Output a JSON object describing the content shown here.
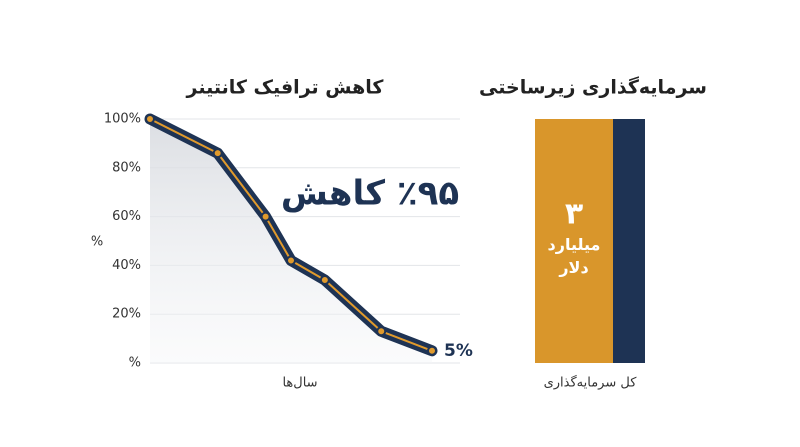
{
  "chart_data": [
    {
      "type": "line",
      "title": "کاهش ترافیک کانتینر",
      "ylabel": "%",
      "xlabel": "سال‌ها",
      "x": [
        0,
        24,
        41,
        50,
        62,
        82,
        100
      ],
      "xlim": [
        0,
        100
      ],
      "values": [
        100,
        86,
        60,
        42,
        34,
        13,
        5
      ],
      "value_labels": [
        null,
        null,
        null,
        null,
        null,
        null,
        "5%"
      ],
      "ylim": [
        0,
        100
      ],
      "yticks": [
        {
          "value": 0,
          "label": "%"
        },
        {
          "value": 20,
          "label": "20%"
        },
        {
          "value": 40,
          "label": "40%"
        },
        {
          "value": 60,
          "label": "60%"
        },
        {
          "value": 80,
          "label": "80%"
        },
        {
          "value": 100,
          "label": "100%"
        }
      ],
      "grid": true,
      "color": "#1e3354",
      "accent_color": "#e09a2c",
      "annotation": "٪۹۵ کاهش"
    },
    {
      "type": "bar",
      "title": "سرمایه‌گذاری زیرساختی",
      "categories": [
        "کل سرمایه‌گذاری"
      ],
      "values": [
        3
      ],
      "value_labels": [
        "۳"
      ],
      "value_unit": "میلیارد دلار",
      "ylim": [
        0,
        3
      ],
      "color": "#d9962b",
      "accent_color": "#1e3354"
    }
  ]
}
